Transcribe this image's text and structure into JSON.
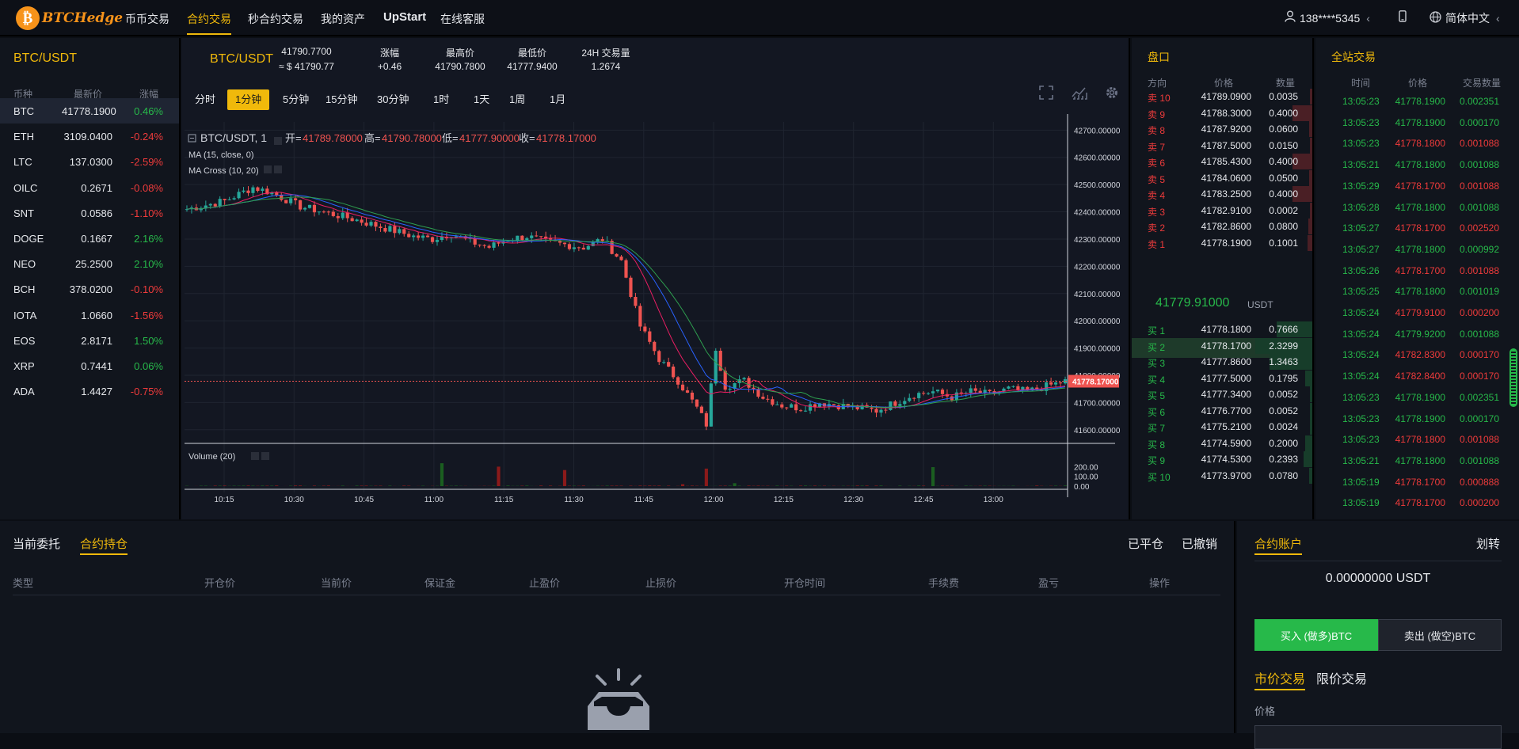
{
  "nav": {
    "brand": "BTCHedge",
    "links": [
      "币币交易",
      "合约交易",
      "秒合约交易",
      "我的资产",
      "UpStart",
      "在线客服"
    ],
    "active_index": 1,
    "user": "138****5345",
    "user_caret": "‹",
    "language": "简体中文",
    "language_caret": "‹"
  },
  "market": {
    "title": "BTC/USDT",
    "headers": [
      "币种",
      "最新价",
      "涨幅"
    ],
    "rows": [
      {
        "coin": "BTC",
        "price": "41778.1900",
        "change": "0.46%",
        "dir": "up"
      },
      {
        "coin": "ETH",
        "price": "3109.0400",
        "change": "-0.24%",
        "dir": "down"
      },
      {
        "coin": "LTC",
        "price": "137.0300",
        "change": "-2.59%",
        "dir": "down"
      },
      {
        "coin": "OILC",
        "price": "0.2671",
        "change": "-0.08%",
        "dir": "down"
      },
      {
        "coin": "SNT",
        "price": "0.0586",
        "change": "-1.10%",
        "dir": "down"
      },
      {
        "coin": "DOGE",
        "price": "0.1667",
        "change": "2.16%",
        "dir": "up"
      },
      {
        "coin": "NEO",
        "price": "25.2500",
        "change": "2.10%",
        "dir": "up"
      },
      {
        "coin": "BCH",
        "price": "378.0200",
        "change": "-0.10%",
        "dir": "down"
      },
      {
        "coin": "IOTA",
        "price": "1.0660",
        "change": "-1.56%",
        "dir": "down"
      },
      {
        "coin": "EOS",
        "price": "2.8171",
        "change": "1.50%",
        "dir": "up"
      },
      {
        "coin": "XRP",
        "price": "0.7441",
        "change": "0.06%",
        "dir": "up"
      },
      {
        "coin": "ADA",
        "price": "1.4427",
        "change": "-0.75%",
        "dir": "down"
      }
    ]
  },
  "ticker": {
    "symbol": "BTC/USDT",
    "last": "41790.7700",
    "last_usd": "≈ $ 41790.77",
    "change_label": "涨幅",
    "change": "+0.46",
    "high_label": "最高价",
    "high": "41790.7800",
    "low_label": "最低价",
    "low": "41777.9400",
    "vol_label": "24H 交易量",
    "vol": "1.2674"
  },
  "timeframes": [
    "分时",
    "1分钟",
    "5分钟",
    "15分钟",
    "30分钟",
    "1时",
    "1天",
    "1周",
    "1月"
  ],
  "timeframe_active": 1,
  "chart_data": {
    "type": "candlestick",
    "symbol_label": "BTC/USDT, 1",
    "ohlc_labels": {
      "open": "开=",
      "high": "高=",
      "low": "低=",
      "close": "收="
    },
    "ohlc_values": {
      "open": "41789.78000",
      "high": "41790.78000",
      "low": "41777.90000",
      "close": "41778.17000"
    },
    "indicators": [
      "MA (15, close, 0)",
      "MA Cross (10, 20)"
    ],
    "volume_label": "Volume (20)",
    "y_ticks": [
      "42700.00000",
      "42600.00000",
      "42500.00000",
      "42400.00000",
      "42300.00000",
      "42200.00000",
      "42100.00000",
      "42000.00000",
      "41900.00000",
      "41800.00000",
      "41700.00000",
      "41600.00000"
    ],
    "ylim": [
      41550,
      42730
    ],
    "last_price": 41778.17,
    "last_price_label": "41778.17000",
    "vol_ticks": [
      "200.00",
      "100.00",
      "0.00"
    ],
    "vol_ylim": [
      0,
      260
    ],
    "x_ticks": [
      "10:15",
      "10:30",
      "10:45",
      "11:00",
      "11:15",
      "11:30",
      "11:45",
      "12:00",
      "12:15",
      "12:30",
      "12:45",
      "13:00"
    ],
    "colors": {
      "up": "#26a69a",
      "down": "#ef5350"
    },
    "close_path": [
      [
        0,
        42410
      ],
      [
        8,
        42440
      ],
      [
        14,
        42490
      ],
      [
        18,
        42470
      ],
      [
        24,
        42420
      ],
      [
        30,
        42395
      ],
      [
        36,
        42370
      ],
      [
        42,
        42340
      ],
      [
        48,
        42310
      ],
      [
        52,
        42300
      ],
      [
        56,
        42320
      ],
      [
        60,
        42290
      ],
      [
        64,
        42270
      ],
      [
        68,
        42300
      ],
      [
        72,
        42310
      ],
      [
        76,
        42290
      ],
      [
        80,
        42280
      ],
      [
        84,
        42270
      ],
      [
        88,
        42300
      ],
      [
        92,
        42220
      ],
      [
        96,
        41980
      ],
      [
        100,
        41860
      ],
      [
        104,
        41780
      ],
      [
        108,
        41680
      ],
      [
        110,
        41620
      ],
      [
        112,
        41900
      ],
      [
        114,
        41760
      ],
      [
        118,
        41780
      ],
      [
        122,
        41720
      ],
      [
        126,
        41690
      ],
      [
        130,
        41680
      ],
      [
        134,
        41700
      ],
      [
        138,
        41690
      ],
      [
        142,
        41680
      ],
      [
        146,
        41670
      ],
      [
        150,
        41700
      ],
      [
        154,
        41730
      ],
      [
        158,
        41740
      ],
      [
        162,
        41720
      ],
      [
        166,
        41740
      ],
      [
        170,
        41730
      ],
      [
        174,
        41750
      ],
      [
        178,
        41740
      ],
      [
        182,
        41760
      ],
      [
        186,
        41778
      ]
    ],
    "volume_spikes": [
      [
        54,
        235
      ],
      [
        66,
        200
      ],
      [
        80,
        165
      ],
      [
        105,
        20
      ],
      [
        110,
        180
      ],
      [
        116,
        30
      ],
      [
        158,
        195
      ]
    ]
  },
  "orderbook": {
    "title": "盘口",
    "headers": [
      "方向",
      "价格",
      "数量"
    ],
    "sells": [
      {
        "side": "卖 10",
        "price": "41789.0900",
        "amount": "0.0035",
        "depth": 0.01
      },
      {
        "side": "卖 9",
        "price": "41788.3000",
        "amount": "0.4000",
        "depth": 0.35
      },
      {
        "side": "卖 8",
        "price": "41787.9200",
        "amount": "0.0600",
        "depth": 0.06
      },
      {
        "side": "卖 7",
        "price": "41787.5000",
        "amount": "0.0150",
        "depth": 0.02
      },
      {
        "side": "卖 6",
        "price": "41785.4300",
        "amount": "0.4000",
        "depth": 0.35
      },
      {
        "side": "卖 5",
        "price": "41784.0600",
        "amount": "0.0500",
        "depth": 0.05
      },
      {
        "side": "卖 4",
        "price": "41783.2500",
        "amount": "0.4000",
        "depth": 0.35
      },
      {
        "side": "卖 3",
        "price": "41782.9100",
        "amount": "0.0002",
        "depth": 0.01
      },
      {
        "side": "卖 2",
        "price": "41782.8600",
        "amount": "0.0800",
        "depth": 0.07
      },
      {
        "side": "卖 1",
        "price": "41778.1900",
        "amount": "0.1001",
        "depth": 0.09
      }
    ],
    "last_price": "41779.91000",
    "last_unit": "USDT",
    "buys": [
      {
        "side": "买 1",
        "price": "41778.1800",
        "amount": "0.7666",
        "depth": 0.62
      },
      {
        "side": "买 2",
        "price": "41778.1700",
        "amount": "2.3299",
        "depth": 1.0
      },
      {
        "side": "买 3",
        "price": "41777.8600",
        "amount": "1.3463",
        "depth": 0.75
      },
      {
        "side": "买 4",
        "price": "41777.5000",
        "amount": "0.1795",
        "depth": 0.12
      },
      {
        "side": "买 5",
        "price": "41777.3400",
        "amount": "0.0052",
        "depth": 0.02
      },
      {
        "side": "买 6",
        "price": "41776.7700",
        "amount": "0.0052",
        "depth": 0.02
      },
      {
        "side": "买 7",
        "price": "41775.2100",
        "amount": "0.0024",
        "depth": 0.02
      },
      {
        "side": "买 8",
        "price": "41774.5900",
        "amount": "0.2000",
        "depth": 0.13
      },
      {
        "side": "买 9",
        "price": "41774.5300",
        "amount": "0.2393",
        "depth": 0.15
      },
      {
        "side": "买 10",
        "price": "41773.9700",
        "amount": "0.0780",
        "depth": 0.06
      }
    ]
  },
  "trades": {
    "title": "全站交易",
    "headers": [
      "时间",
      "价格",
      "交易数量"
    ],
    "rows": [
      {
        "time": "13:05:23",
        "price": "41778.1900",
        "amount": "0.002351",
        "dir": "up"
      },
      {
        "time": "13:05:23",
        "price": "41778.1900",
        "amount": "0.000170",
        "dir": "up"
      },
      {
        "time": "13:05:23",
        "price": "41778.1800",
        "amount": "0.001088",
        "dir": "down"
      },
      {
        "time": "13:05:21",
        "price": "41778.1800",
        "amount": "0.001088",
        "dir": "up"
      },
      {
        "time": "13:05:29",
        "price": "41778.1700",
        "amount": "0.001088",
        "dir": "down"
      },
      {
        "time": "13:05:28",
        "price": "41778.1800",
        "amount": "0.001088",
        "dir": "up"
      },
      {
        "time": "13:05:27",
        "price": "41778.1700",
        "amount": "0.002520",
        "dir": "down"
      },
      {
        "time": "13:05:27",
        "price": "41778.1800",
        "amount": "0.000992",
        "dir": "up"
      },
      {
        "time": "13:05:26",
        "price": "41778.1700",
        "amount": "0.001088",
        "dir": "down"
      },
      {
        "time": "13:05:25",
        "price": "41778.1800",
        "amount": "0.001019",
        "dir": "up"
      },
      {
        "time": "13:05:24",
        "price": "41779.9100",
        "amount": "0.000200",
        "dir": "down"
      },
      {
        "time": "13:05:24",
        "price": "41779.9200",
        "amount": "0.001088",
        "dir": "up"
      },
      {
        "time": "13:05:24",
        "price": "41782.8300",
        "amount": "0.000170",
        "dir": "down"
      },
      {
        "time": "13:05:24",
        "price": "41782.8400",
        "amount": "0.000170",
        "dir": "down"
      },
      {
        "time": "13:05:23",
        "price": "41778.1900",
        "amount": "0.002351",
        "dir": "up"
      },
      {
        "time": "13:05:23",
        "price": "41778.1900",
        "amount": "0.000170",
        "dir": "up"
      },
      {
        "time": "13:05:23",
        "price": "41778.1800",
        "amount": "0.001088",
        "dir": "down"
      },
      {
        "time": "13:05:21",
        "price": "41778.1800",
        "amount": "0.001088",
        "dir": "up"
      },
      {
        "time": "13:05:19",
        "price": "41778.1700",
        "amount": "0.000888",
        "dir": "down"
      },
      {
        "time": "13:05:19",
        "price": "41778.1700",
        "amount": "0.000200",
        "dir": "down"
      }
    ]
  },
  "positions": {
    "tabs": [
      "当前委托",
      "合约持仓"
    ],
    "active_tab": 1,
    "right_tabs": [
      "已平仓",
      "已撤销"
    ],
    "columns": [
      "类型",
      "开仓价",
      "当前价",
      "保证金",
      "止盈价",
      "止损价",
      "开仓时间",
      "手续费",
      "盈亏",
      "操作"
    ]
  },
  "account": {
    "title": "合约账户",
    "transfer": "划转",
    "balance": "0.00000000 USDT",
    "buy_label": "买入 (做多)BTC",
    "sell_label": "卖出 (做空)BTC",
    "order_tabs": [
      "市价交易",
      "限价交易"
    ],
    "price_label": "价格"
  }
}
